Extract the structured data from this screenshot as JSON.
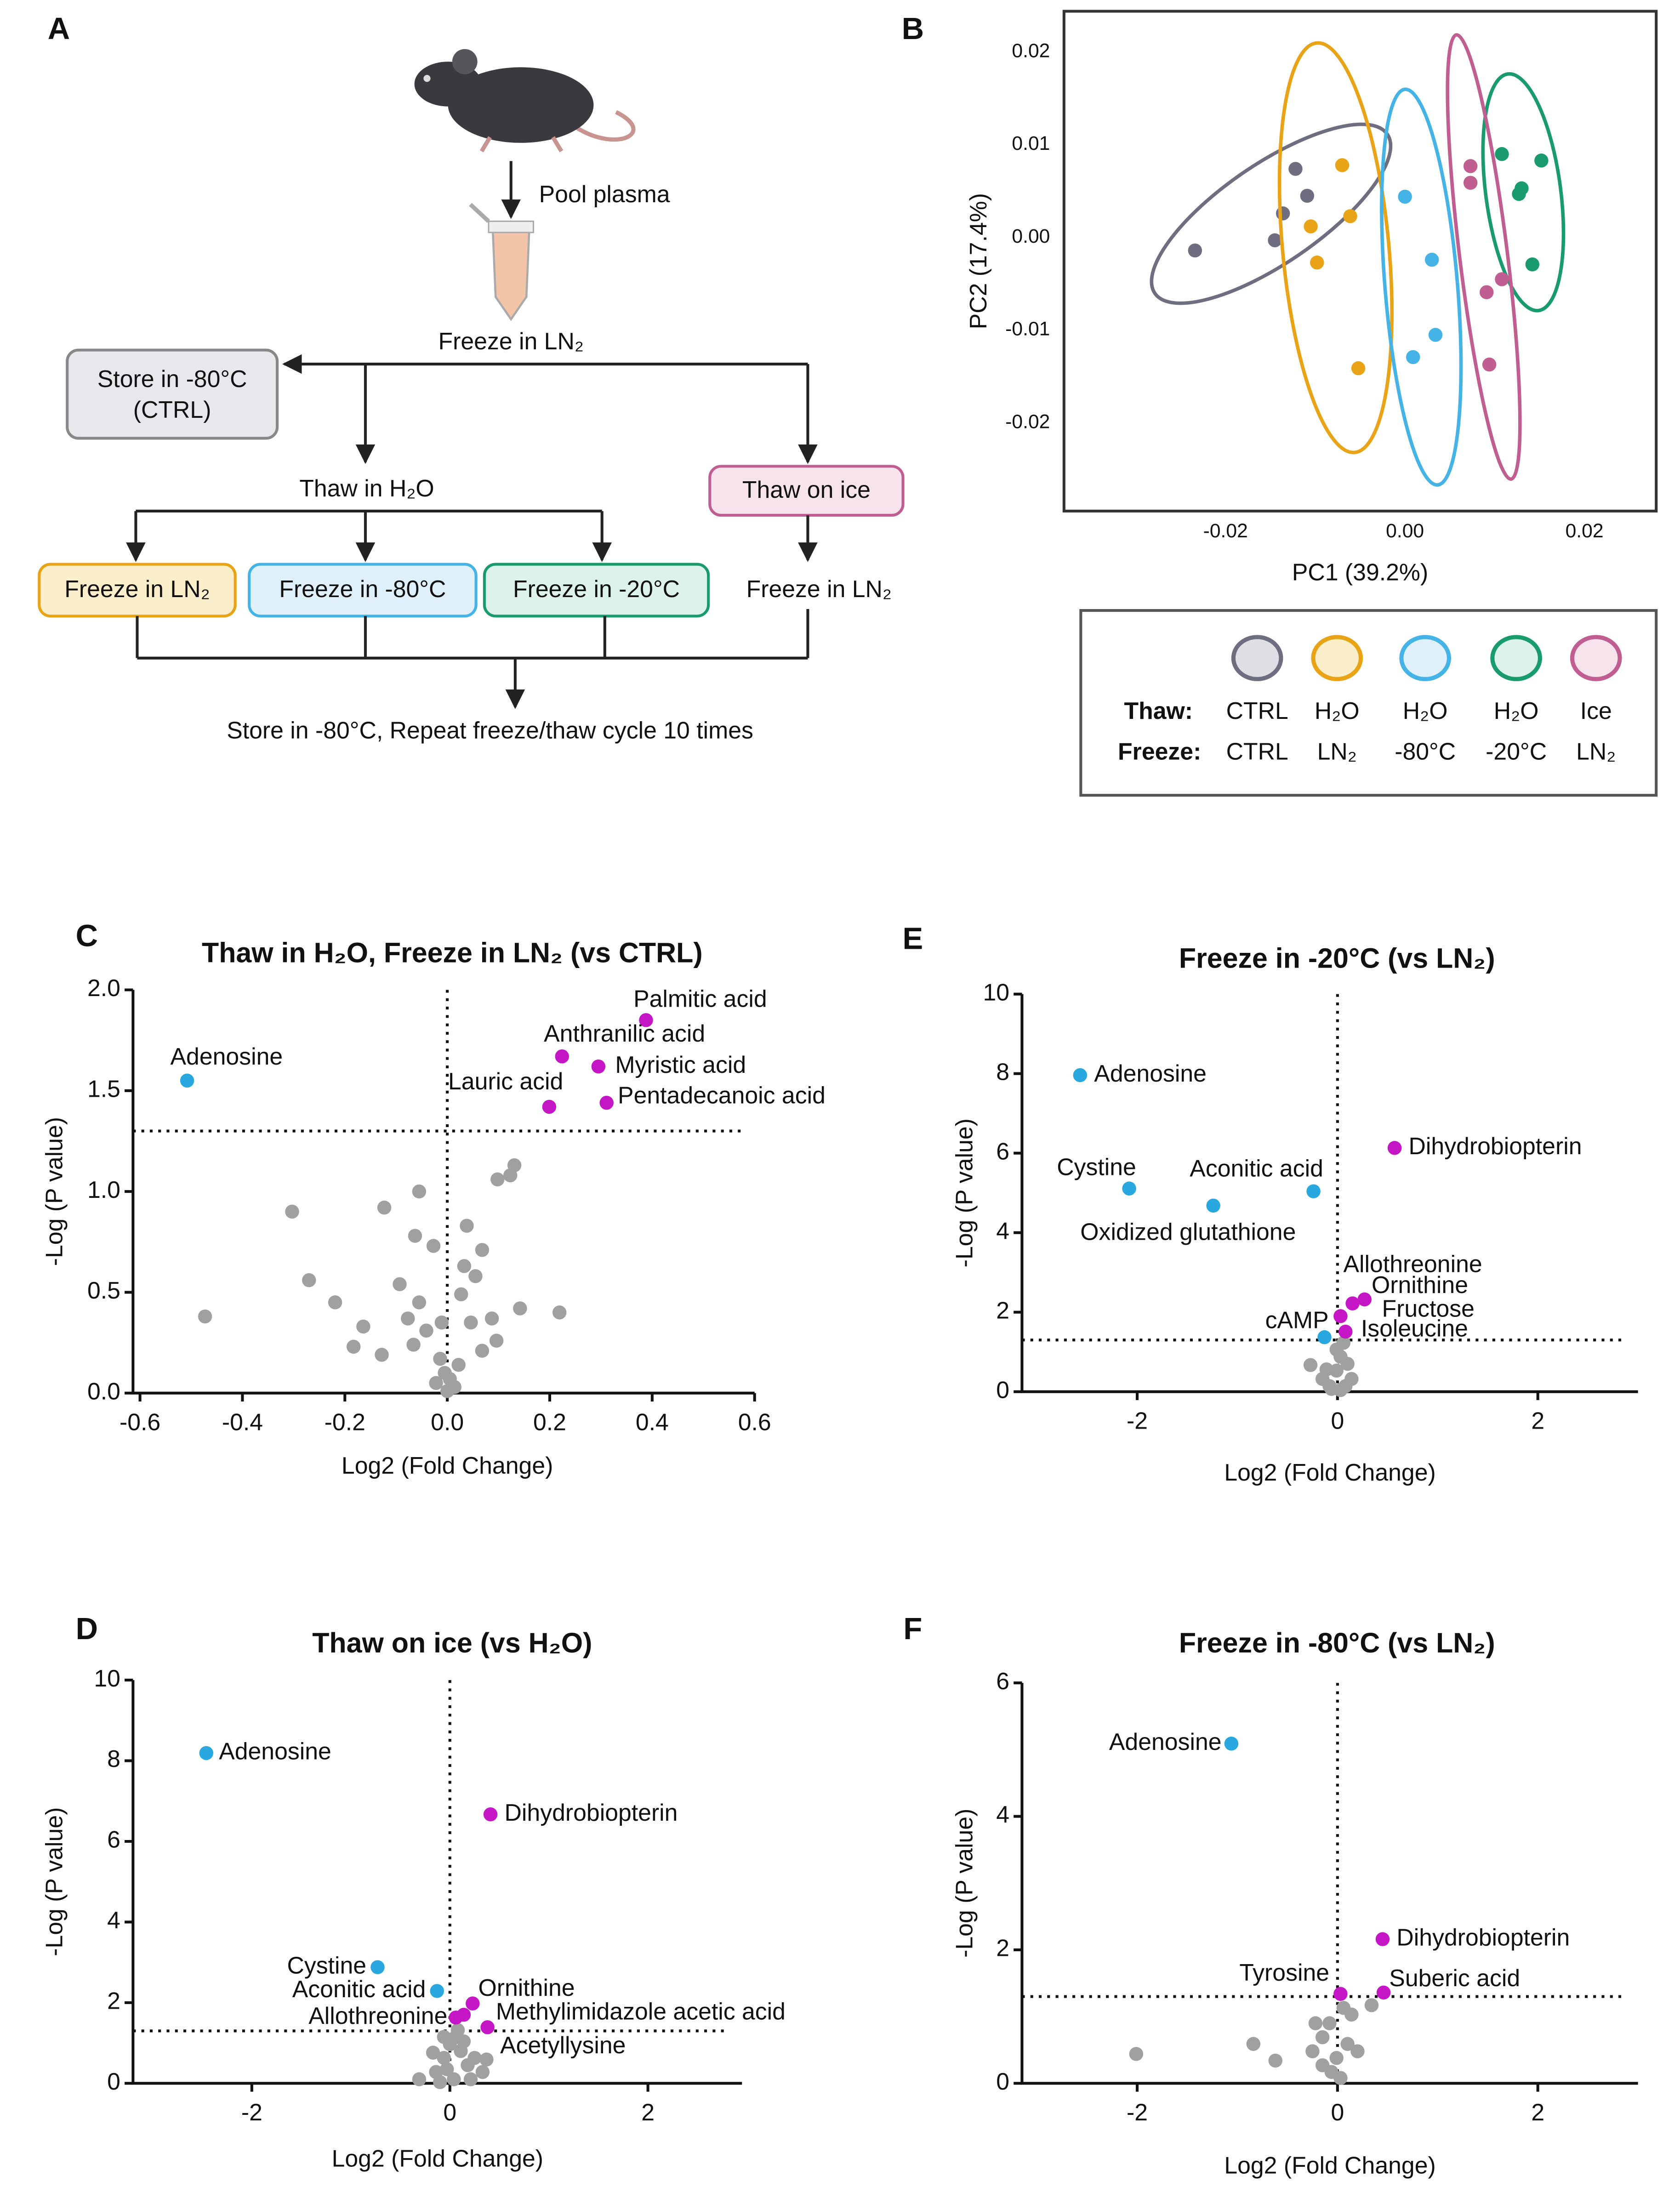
{
  "diagram": {
    "panel": "A",
    "source_step": "Pool plasma",
    "freeze_step": "Freeze in LN₂",
    "ctrl_box": [
      "Store in -80°C",
      "(CTRL)"
    ],
    "thaw_h2o": "Thaw in H₂O",
    "thaw_ice": "Thaw on ice",
    "freeze_boxes": [
      "Freeze in LN₂",
      "Freeze in -80°C",
      "Freeze in -20°C"
    ],
    "ice_freeze": "Freeze in LN₂",
    "final_step": "Store in -80°C, Repeat freeze/thaw cycle 10 times"
  },
  "chart_data": [
    {
      "panel": "B",
      "type": "scatter",
      "ellipses": true,
      "xlabel": "PC1 (39.2%)",
      "ylabel": "PC2 (17.4%)",
      "xlim": [
        -0.038,
        0.028
      ],
      "ylim": [
        -0.0295,
        0.0244
      ],
      "xticks": [
        -0.02,
        {
          "value": 0,
          "label": "0.00"
        },
        0.02
      ],
      "yticks": [
        -0.02,
        -0.01,
        {
          "value": 0,
          "label": "0.00"
        },
        0.01,
        0.02
      ],
      "legend_headers": [
        "Thaw:",
        "Freeze:"
      ],
      "series": [
        {
          "thaw": "CTRL",
          "freeze": "CTRL",
          "color": "#6e6e80",
          "fill": "#dedee4",
          "x": [
            -0.0234,
            -0.0145,
            -0.0136,
            -0.0109,
            -0.0122
          ],
          "values": [
            -0.0014,
            -0.0003,
            0.0026,
            0.0045,
            0.0074
          ]
        },
        {
          "thaw": "H₂O",
          "freeze": "LN₂",
          "color": "#e8a317",
          "fill": "#fbeecb",
          "x": [
            -0.007,
            -0.0061,
            -0.0105,
            -0.0098,
            -0.0052
          ],
          "values": [
            0.0078,
            0.0023,
            0.0012,
            -0.0027,
            -0.0141
          ]
        },
        {
          "thaw": "H₂O",
          "freeze": "-80°C",
          "color": "#45b3e6",
          "fill": "#dff0fa",
          "x": [
            0.0,
            0.003,
            0.0034,
            0.0009
          ],
          "values": [
            0.0044,
            -0.0024,
            -0.0105,
            -0.0129
          ]
        },
        {
          "thaw": "H₂O",
          "freeze": "-20°C",
          "color": "#1a9b6e",
          "fill": "#ddf2e9",
          "x": [
            0.0108,
            0.0152,
            0.013,
            0.0127,
            0.0142
          ],
          "values": [
            0.009,
            0.0083,
            0.0053,
            0.0047,
            -0.0029
          ]
        },
        {
          "thaw": "Ice",
          "freeze": "LN₂",
          "color": "#c05e91",
          "fill": "#f6e3ec",
          "x": [
            0.0073,
            0.0073,
            0.0108,
            0.0091,
            0.0094
          ],
          "values": [
            0.0077,
            0.0059,
            -0.0045,
            -0.0059,
            -0.0137
          ]
        }
      ]
    },
    {
      "panel": "C",
      "type": "scatter",
      "title": "Thaw in H₂O, Freeze in LN₂ (vs CTRL)",
      "xlabel": "Log2 (Fold Change)",
      "ylabel": "-Log (P value)",
      "xlim": [
        -0.6,
        0.6
      ],
      "ylim": [
        0,
        2
      ],
      "xticks": [
        -0.6,
        -0.4,
        -0.2,
        {
          "value": 0,
          "label": "0.0"
        },
        0.2,
        0.4,
        0.6
      ],
      "yticks": [
        {
          "value": 0,
          "label": "0.0"
        },
        0.5,
        {
          "value": 1,
          "label": "1.0"
        },
        1.5,
        {
          "value": 2,
          "label": "2.0"
        }
      ],
      "threshold": 1.3,
      "vline": 0,
      "series": [
        {
          "color": "#a0a0a0",
          "x": [
            -0.303,
            -0.27,
            -0.473,
            -0.123,
            -0.055,
            -0.063,
            -0.027,
            0.038,
            0.068,
            0.055,
            0.033,
            0.098,
            0.123,
            0.131,
            0.142,
            0.219,
            -0.164,
            -0.183,
            -0.128,
            -0.066,
            -0.077,
            -0.041,
            -0.011,
            0.046,
            0.087,
            0.096,
            0.068,
            -0.055,
            0.027,
            -0.014,
            -0.005,
            0.005,
            0.022,
            -0.022,
            0.014,
            0.0,
            -0.219,
            -0.093
          ],
          "values": [
            0.9,
            0.56,
            0.38,
            0.92,
            1.0,
            0.78,
            0.73,
            0.83,
            0.71,
            0.58,
            0.63,
            1.06,
            1.08,
            1.13,
            0.42,
            0.4,
            0.33,
            0.23,
            0.19,
            0.24,
            0.37,
            0.31,
            0.35,
            0.35,
            0.37,
            0.26,
            0.21,
            0.45,
            0.49,
            0.17,
            0.1,
            0.07,
            0.14,
            0.05,
            0.03,
            0.01,
            0.45,
            0.54
          ]
        },
        {
          "color": "#29a8e0",
          "x": [
            -0.508
          ],
          "values": [
            1.55
          ],
          "labels": [
            "Adenosine"
          ]
        },
        {
          "color": "#c416c4",
          "x": [
            0.388,
            0.224,
            0.295,
            0.199,
            0.311
          ],
          "values": [
            1.85,
            1.67,
            1.62,
            1.42,
            1.44
          ],
          "labels": [
            "Palmitic acid",
            "Anthranilic acid",
            "Myristic acid",
            "Lauric acid",
            "Pentadecanoic acid"
          ]
        }
      ]
    },
    {
      "panel": "D",
      "type": "scatter",
      "title": "Thaw on ice (vs H₂O)",
      "xlabel": "Log2 (Fold Change)",
      "ylabel": "-Log (P value)",
      "xlim": [
        -3.2,
        2.95
      ],
      "ylim": [
        0,
        10
      ],
      "xticks": [
        -2,
        0,
        2
      ],
      "yticks": [
        0,
        2,
        4,
        6,
        8,
        10
      ],
      "threshold": 1.3,
      "vline": 0,
      "series": [
        {
          "color": "#a0a0a0",
          "x": [
            -0.31,
            -0.14,
            -0.06,
            0.0,
            0.06,
            0.11,
            0.18,
            0.25,
            0.33,
            0.37,
            -0.1,
            0.04,
            -0.03,
            0.08,
            0.14,
            -0.06,
            -0.17,
            0.21
          ],
          "values": [
            0.1,
            0.28,
            0.63,
            0.97,
            1.15,
            0.8,
            0.45,
            0.63,
            0.28,
            0.59,
            0.03,
            0.1,
            0.35,
            1.32,
            1.04,
            1.15,
            0.76,
            0.1
          ]
        },
        {
          "color": "#29a8e0",
          "x": [
            -2.46,
            -0.73,
            -0.13
          ],
          "values": [
            8.19,
            2.88,
            2.29
          ],
          "labels": [
            "Adenosine",
            "Cystine",
            "Aconitic acid"
          ]
        },
        {
          "color": "#c416c4",
          "x": [
            0.41,
            0.23,
            0.06,
            0.38,
            0.14
          ],
          "values": [
            6.67,
            1.98,
            1.63,
            1.39,
            1.7
          ],
          "labels": [
            "Dihydrobiopterin",
            "Ornithine",
            "Allothreonine",
            "Methylimidazole acetic acid",
            "Acetyllysine"
          ]
        }
      ]
    },
    {
      "panel": "E",
      "type": "scatter",
      "title": "Freeze in -20°C (vs LN₂)",
      "xlabel": "Log2 (Fold Change)",
      "ylabel": "-Log (P value)",
      "xlim": [
        -3.15,
        3.0
      ],
      "ylim": [
        0,
        10
      ],
      "xticks": [
        -2,
        0,
        2
      ],
      "yticks": [
        0,
        2,
        4,
        6,
        8,
        10
      ],
      "threshold": 1.3,
      "vline": 0,
      "series": [
        {
          "color": "#a0a0a0",
          "x": [
            -0.27,
            -0.15,
            -0.08,
            -0.01,
            0.03,
            0.06,
            0.1,
            0.14,
            -0.06,
            0.03,
            -0.01,
            0.08,
            -0.11
          ],
          "values": [
            0.67,
            0.32,
            0.14,
            0.53,
            0.88,
            1.23,
            0.7,
            0.32,
            0.07,
            0.04,
            1.06,
            0.14,
            0.56
          ]
        },
        {
          "color": "#29a8e0",
          "x": [
            -2.57,
            -2.08,
            -0.24,
            -1.24,
            -0.13
          ],
          "values": [
            7.96,
            5.11,
            5.04,
            4.68,
            1.37
          ],
          "labels": [
            "Adenosine",
            "Cystine",
            "Aconitic acid",
            "Oxidized glutathione",
            "cAMP"
          ]
        },
        {
          "color": "#c416c4",
          "x": [
            0.57,
            0.03,
            0.27,
            0.15,
            0.08
          ],
          "values": [
            6.13,
            1.9,
            2.32,
            2.22,
            1.51
          ],
          "labels": [
            "Dihydrobiopterin",
            "Allothreonine",
            "Ornithine",
            "Fructose",
            "Isoleucine"
          ]
        }
      ]
    },
    {
      "panel": "F",
      "type": "scatter",
      "title": "Freeze in -80°C (vs LN₂)",
      "xlabel": "Log2 (Fold Change)",
      "ylabel": "-Log (P value)",
      "xlim": [
        -3.15,
        3.0
      ],
      "ylim": [
        0,
        6
      ],
      "xticks": [
        -2,
        0,
        2
      ],
      "yticks": [
        0,
        2,
        4,
        6
      ],
      "threshold": 1.3,
      "vline": 0,
      "series": [
        {
          "color": "#a0a0a0",
          "x": [
            -2.01,
            -0.84,
            -0.62,
            -0.25,
            -0.15,
            -0.08,
            -0.01,
            0.06,
            0.1,
            0.14,
            0.2,
            0.34,
            -0.06,
            0.03,
            -0.15,
            -0.22
          ],
          "values": [
            0.44,
            0.59,
            0.34,
            0.48,
            0.69,
            0.9,
            0.38,
            1.13,
            0.59,
            1.03,
            0.48,
            1.17,
            0.17,
            0.08,
            0.27,
            0.9
          ]
        },
        {
          "color": "#29a8e0",
          "x": [
            -1.06
          ],
          "values": [
            5.09
          ],
          "labels": [
            "Adenosine"
          ]
        },
        {
          "color": "#c416c4",
          "x": [
            0.45,
            0.03,
            0.46
          ],
          "values": [
            2.16,
            1.34,
            1.36
          ],
          "labels": [
            "Dihydrobiopterin",
            "Tyrosine",
            "Suberic acid"
          ]
        }
      ]
    }
  ]
}
